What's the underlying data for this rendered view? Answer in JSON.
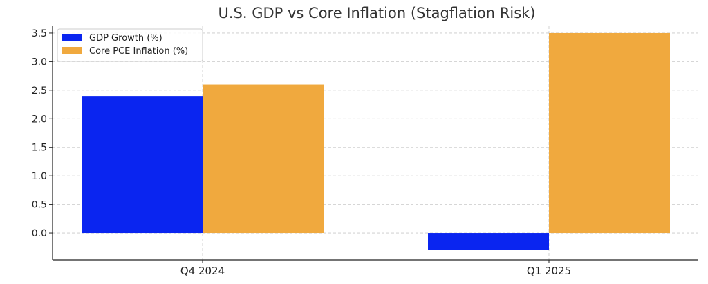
{
  "chart_data": {
    "type": "bar",
    "title": "U.S. GDP vs Core Inflation (Stagflation Risk)",
    "xlabel": "",
    "ylabel": "",
    "categories": [
      "Q4 2024",
      "Q1 2025"
    ],
    "series": [
      {
        "name": "GDP Growth (%)",
        "values": [
          2.4,
          -0.3
        ],
        "color": "#0a25f0"
      },
      {
        "name": "Core PCE Inflation (%)",
        "values": [
          2.6,
          3.5
        ],
        "color": "#f0a93e"
      }
    ],
    "ylim": [
      -0.47,
      3.62
    ],
    "yticks": [
      0.0,
      0.5,
      1.0,
      1.5,
      2.0,
      2.5,
      3.0,
      3.5
    ],
    "ytick_labels": [
      "0.0",
      "0.5",
      "1.0",
      "1.5",
      "2.0",
      "2.5",
      "3.0",
      "3.5"
    ],
    "grid": true,
    "legend_position": "upper-left"
  }
}
